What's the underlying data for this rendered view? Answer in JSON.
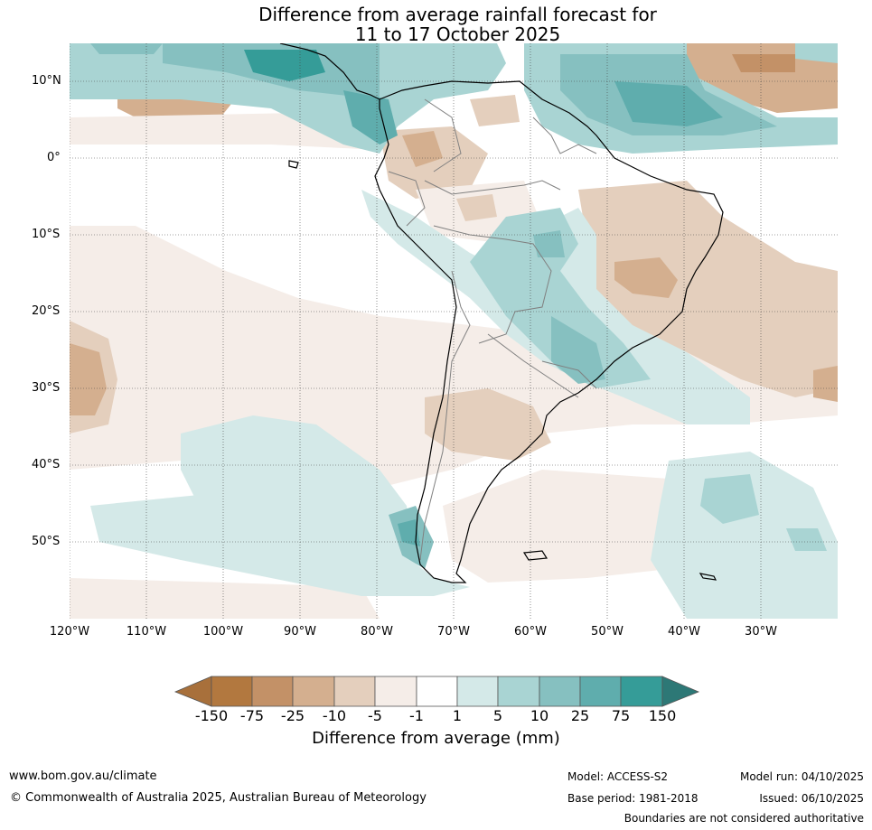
{
  "title": {
    "line1": "Difference from average rainfall forecast for",
    "line2": "11 to 17 October 2025"
  },
  "map": {
    "lat_labels": [
      "10°N",
      "0°",
      "10°S",
      "20°S",
      "30°S",
      "40°S",
      "50°S"
    ],
    "lon_labels": [
      "120°W",
      "110°W",
      "100°W",
      "90°W",
      "80°W",
      "70°W",
      "60°W",
      "50°W",
      "40°W",
      "30°W"
    ],
    "region": "South America and surrounding oceans"
  },
  "colorbar": {
    "labels": [
      "-150",
      "-75",
      "-25",
      "-10",
      "-5",
      "-1",
      "1",
      "5",
      "10",
      "25",
      "75",
      "150"
    ],
    "colors": [
      "#a8703b",
      "#b2783f",
      "#c39167",
      "#d4af8f",
      "#e4cfbd",
      "#f5ede8",
      "#ffffff",
      "#d4e9e8",
      "#a9d4d3",
      "#86c0c0",
      "#5fadad",
      "#359c98",
      "#2d7876"
    ],
    "title": "Difference from average (mm)"
  },
  "footer": {
    "website": "www.bom.gov.au/climate",
    "copyright": "© Commonwealth of Australia 2025, Australian Bureau of Meteorology",
    "model": "Model: ACCESS-S2",
    "base_period": "Base period: 1981-2018",
    "model_run": "Model run: 04/10/2025",
    "issued": "Issued: 06/10/2025",
    "disclaimer": "Boundaries are not considered authoritative"
  }
}
